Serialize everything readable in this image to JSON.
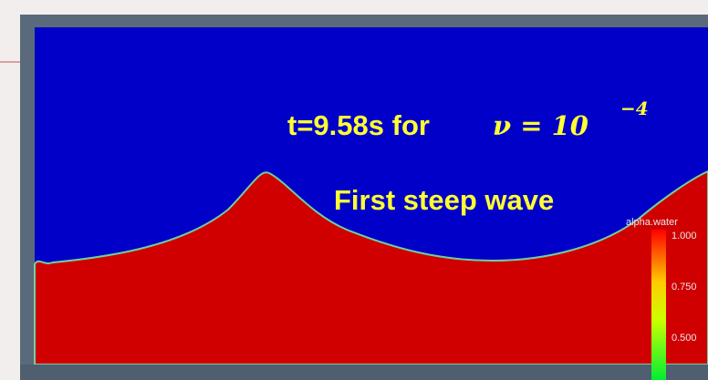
{
  "annotation": {
    "prefix": "t=9.58s for",
    "equation": "ν = 10",
    "exponent": "−4",
    "caption": "First steep wave"
  },
  "colorbar": {
    "title": "alpha.water",
    "ticks": [
      "1.000",
      "0.750",
      "0.500"
    ]
  }
}
